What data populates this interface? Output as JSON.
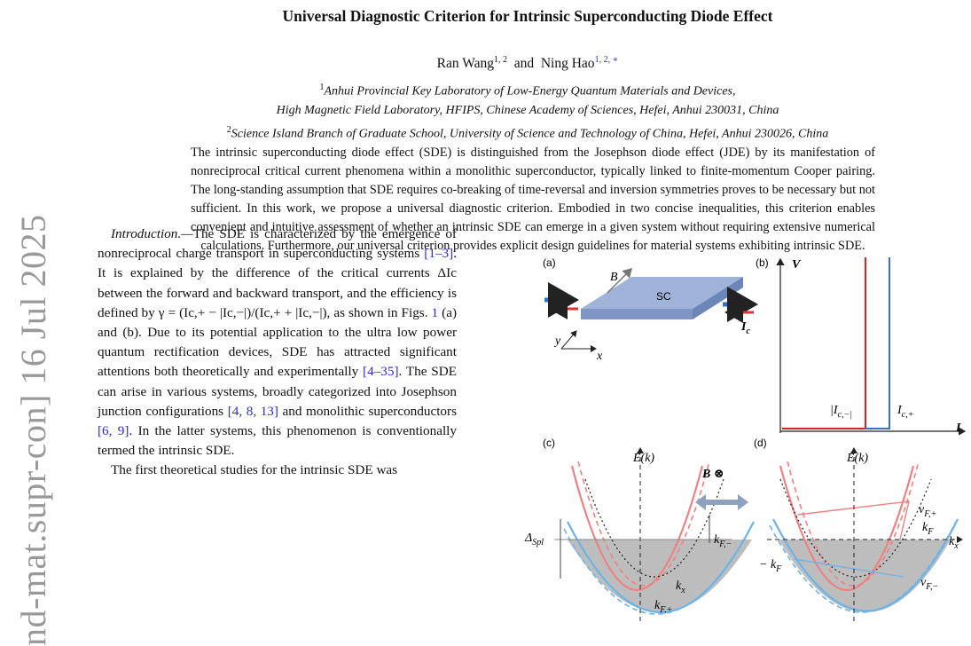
{
  "sidebar": "nd-mat.supr-con]  16 Jul 2025",
  "header": {
    "title": "Universal Diagnostic Criterion for Intrinsic Superconducting Diode Effect",
    "authors": [
      {
        "name": "Ran Wang",
        "sup": "1, 2"
      },
      {
        "name": "Ning Hao",
        "sup": "1, 2, ∗"
      }
    ],
    "connector": "and",
    "affiliations": [
      {
        "sup": "1",
        "text": "Anhui Provincial Key Laboratory of Low-Energy Quantum Materials and Devices,"
      },
      {
        "sup": "",
        "text": "High Magnetic Field Laboratory, HFIPS, Chinese Academy of Sciences, Hefei, Anhui 230031, China"
      },
      {
        "sup": "2",
        "text": "Science Island Branch of Graduate School, University of Science and Technology of China, Hefei, Anhui 230026, China"
      }
    ]
  },
  "abstract": "The intrinsic superconducting diode effect (SDE) is distinguished from the Josephson diode effect (JDE) by its manifestation of nonreciprocal critical current phenomena within a monolithic superconductor, typically linked to finite-momentum Cooper pairing. The long-standing assumption that SDE requires co-breaking of time-reversal and inversion symmetries proves to be necessary but not sufficient. In this work, we propose a universal diagnostic criterion. Embodied in two concise inequalities, this criterion enables convenient and intuitive assessment of whether an intrinsic SDE can emerge in a given system without requiring extensive numerical calculations. Furthermore, our universal criterion provides explicit design guidelines for material systems exhibiting intrinsic SDE.",
  "body": [
    [
      {
        "text": "Introduction.—",
        "style": "italic"
      },
      {
        "text": "The SDE is characterized by the emergence of nonreciprocal charge transport in superconducting systems ",
        "style": "plain"
      },
      {
        "text": "[1–3]",
        "style": "link"
      },
      {
        "text": ". It is explained by the difference of the critical currents ΔIc between the forward and backward transport, and the efficiency is defined by γ = (Ic,+ − |Ic,−|)/(Ic,+ + |Ic,−|), as shown in Figs. ",
        "style": "plain"
      },
      {
        "text": "1",
        "style": "link"
      },
      {
        "text": " (a) and (b). Due to its potential application to the ultra low power quantum rectification devices, SDE has attracted significant attentions both theoretically and experimentally ",
        "style": "plain"
      },
      {
        "text": "[4–35]",
        "style": "link"
      },
      {
        "text": ". The SDE can arise in various systems, broadly categorized into Josephson junction configurations ",
        "style": "plain"
      },
      {
        "text": "[4, 8, 13]",
        "style": "link"
      },
      {
        "text": " and monolithic superconductors ",
        "style": "plain"
      },
      {
        "text": "[6, 9]",
        "style": "link"
      },
      {
        "text": ". In the latter systems, this phenomenon is conventionally termed the intrinsic SDE.",
        "style": "plain"
      }
    ],
    [
      {
        "text": "The first theoretical studies for the intrinsic SDE was",
        "style": "plain"
      }
    ]
  ],
  "figure": {
    "panels": [
      "(a)",
      "(b)",
      "(c)",
      "(d)"
    ],
    "labels": [
      {
        "main": "B",
        "sub": ""
      },
      {
        "main": "SC",
        "sub": ""
      },
      {
        "main": "y",
        "sub": ""
      },
      {
        "main": "x",
        "sub": ""
      },
      {
        "main": "I",
        "sub": "c"
      },
      {
        "main": "V",
        "sub": ""
      },
      {
        "main": "|I",
        "sub": "c,−|"
      },
      {
        "main": "I",
        "sub": "c,+"
      },
      {
        "main": "I",
        "sub": ""
      },
      {
        "main": "E(k)",
        "sub": ""
      },
      {
        "main": "k",
        "sub": "x"
      },
      {
        "main": "Δ",
        "sub": "Spl"
      },
      {
        "main": "k",
        "sub": "F,−"
      },
      {
        "main": "k",
        "sub": "F,+"
      },
      {
        "main": "B ⊗",
        "sub": ""
      },
      {
        "main": "E(k)",
        "sub": ""
      },
      {
        "main": "v",
        "sub": "F,+"
      },
      {
        "main": "k",
        "sub": "F"
      },
      {
        "main": "k",
        "sub": "x"
      },
      {
        "main": "− k",
        "sub": "F"
      },
      {
        "main": "v",
        "sub": "F,−"
      }
    ]
  }
}
